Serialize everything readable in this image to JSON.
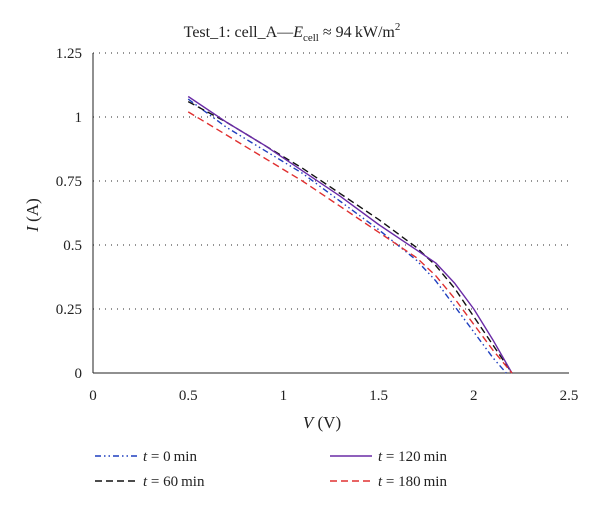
{
  "chart_data": {
    "type": "line",
    "title": {
      "prefix": "Test_1: cell_A—",
      "symbol": "E",
      "subscript": "cell",
      "rest": " ≈ 94 kW/m",
      "superscript": "2"
    },
    "xlabel": {
      "symbol": "V",
      "unit": " (V)"
    },
    "ylabel": {
      "symbol": "I",
      "unit": " (A)"
    },
    "xlim": [
      0,
      2.5
    ],
    "ylim": [
      0,
      1.25
    ],
    "xticks": [
      "0",
      "0.5",
      "1",
      "1.5",
      "2",
      "2.5"
    ],
    "yticks": [
      "0",
      "0.25",
      "0.5",
      "0.75",
      "1",
      "1.25"
    ],
    "grid": "horizontal-dotted",
    "legend_position": "bottom",
    "series": [
      {
        "name": {
          "symbol": "t",
          "text": " = 0 min"
        },
        "color": "#1f3fbf",
        "dash": "dash-dot-dot",
        "x": [
          0.5,
          0.7,
          0.9,
          1.1,
          1.3,
          1.5,
          1.7,
          1.8,
          1.9,
          2.0,
          2.1,
          2.17
        ],
        "y": [
          1.07,
          0.96,
          0.87,
          0.78,
          0.67,
          0.56,
          0.44,
          0.36,
          0.26,
          0.16,
          0.06,
          0.0
        ]
      },
      {
        "name": {
          "symbol": "t",
          "text": " = 60 min"
        },
        "color": "#111111",
        "dash": "dash",
        "x": [
          0.5,
          0.7,
          0.9,
          1.1,
          1.3,
          1.5,
          1.7,
          1.8,
          1.9,
          2.0,
          2.1,
          2.2
        ],
        "y": [
          1.06,
          0.98,
          0.89,
          0.8,
          0.7,
          0.6,
          0.49,
          0.42,
          0.33,
          0.22,
          0.11,
          0.0
        ]
      },
      {
        "name": {
          "symbol": "t",
          "text": " = 120 min"
        },
        "color": "#6a2ba6",
        "dash": "solid",
        "x": [
          0.5,
          0.7,
          0.9,
          1.1,
          1.3,
          1.5,
          1.7,
          1.8,
          1.9,
          2.0,
          2.1,
          2.2
        ],
        "y": [
          1.08,
          0.98,
          0.89,
          0.79,
          0.69,
          0.58,
          0.48,
          0.43,
          0.35,
          0.25,
          0.13,
          0.0
        ]
      },
      {
        "name": {
          "symbol": "t",
          "text": " = 180 min"
        },
        "color": "#e03030",
        "dash": "dash",
        "x": [
          0.5,
          0.7,
          0.9,
          1.1,
          1.3,
          1.5,
          1.7,
          1.8,
          1.9,
          2.0,
          2.1,
          2.2
        ],
        "y": [
          1.02,
          0.93,
          0.84,
          0.75,
          0.65,
          0.55,
          0.45,
          0.38,
          0.29,
          0.19,
          0.09,
          0.0
        ]
      }
    ]
  }
}
